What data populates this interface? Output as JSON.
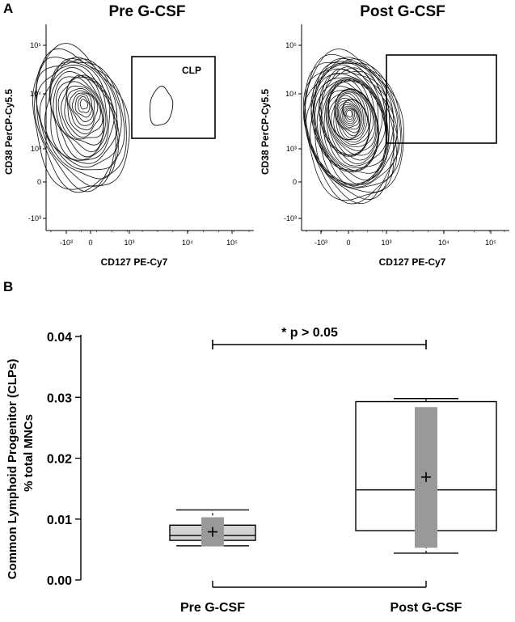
{
  "panels": {
    "a_letter": "A",
    "b_letter": "B"
  },
  "chart_data": [
    {
      "type": "contour",
      "title": "Pre G-CSF",
      "xlabel": "CD127 PE-Cy7",
      "ylabel": "CD38 PerCP-Cy5.5",
      "x_ticks": [
        "-10³",
        "0",
        "10³",
        "10⁴",
        "10⁵"
      ],
      "y_ticks": [
        "10⁵",
        "10⁴",
        "10³",
        "0",
        "-10³"
      ],
      "x_scale": "biexponential",
      "y_scale": "biexponential",
      "gate_label": "CLP",
      "grid": false
    },
    {
      "type": "contour",
      "title": "Post G-CSF",
      "xlabel": "CD127 PE-Cy7",
      "ylabel": "CD38 PerCP-Cy5.5",
      "x_ticks": [
        "-10³",
        "0",
        "10³",
        "10⁴",
        "10⁵"
      ],
      "y_ticks": [
        "10⁵",
        "10⁴",
        "10³",
        "0",
        "-10³"
      ],
      "x_scale": "biexponential",
      "y_scale": "biexponential",
      "grid": false
    },
    {
      "type": "box",
      "ylabel_line1": "Common Lymphoid Progenitor (CLPs)",
      "ylabel_line2": "% total MNCs",
      "categories": [
        "Pre G-CSF",
        "Post G-CSF"
      ],
      "ylim": [
        0,
        0.04
      ],
      "y_ticks": [
        "0.00",
        "0.01",
        "0.02",
        "0.03",
        "0.04"
      ],
      "y_tick_values": [
        0,
        0.01,
        0.02,
        0.03,
        0.04
      ],
      "boxes": [
        {
          "whisker_low": 0.0056,
          "q1": 0.0065,
          "median": 0.0073,
          "q3": 0.009,
          "whisker_high": 0.0115,
          "mean": 0.0079,
          "sd_low": 0.0055,
          "sd_high": 0.0103,
          "fill": "#d3d3d3"
        },
        {
          "whisker_low": 0.0044,
          "q1": 0.0081,
          "median": 0.0148,
          "q3": 0.0293,
          "whisker_high": 0.0298,
          "mean": 0.0169,
          "sd_low": 0.0053,
          "sd_high": 0.0284,
          "fill": "#ffffff"
        }
      ],
      "sd_bar_color": "#999999",
      "significance_label": "* p > 0.05",
      "grid": false
    }
  ]
}
